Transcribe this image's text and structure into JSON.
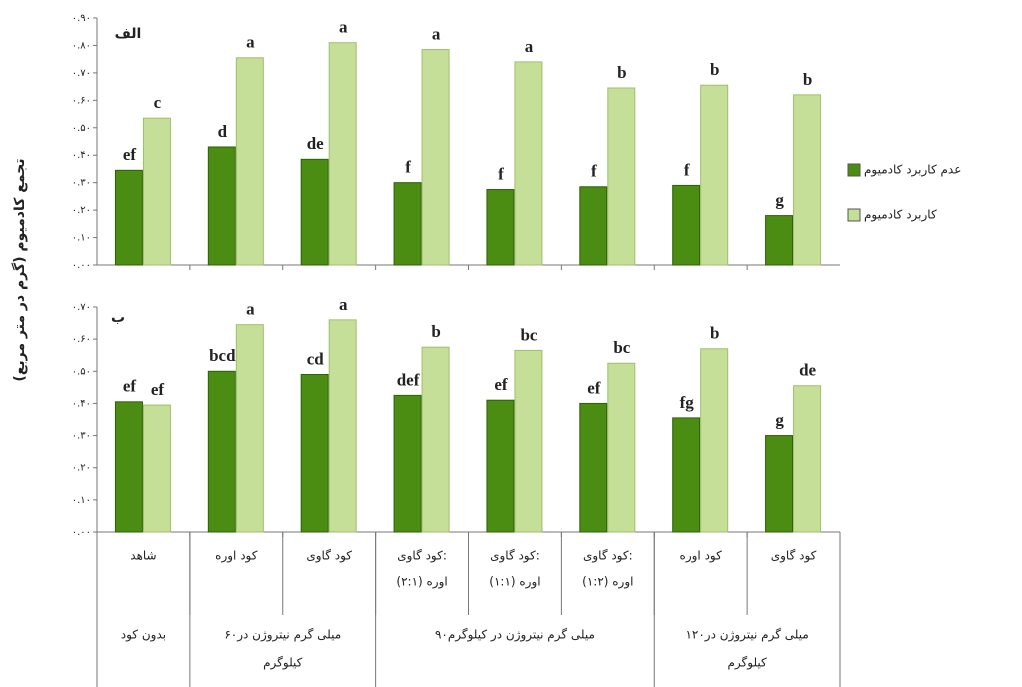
{
  "chart_data": [
    {
      "type": "bar",
      "title": "الف",
      "ylim": [
        0,
        0.9
      ],
      "yticks": [
        {
          "value": 0,
          "label": "۰.۰۰"
        },
        {
          "value": 0.1,
          "label": "۰.۱۰"
        },
        {
          "value": 0.2,
          "label": "۰.۲۰"
        },
        {
          "value": 0.3,
          "label": "۰.۳۰"
        },
        {
          "value": 0.4,
          "label": "۰.۴۰"
        },
        {
          "value": 0.5,
          "label": "۰.۵۰"
        },
        {
          "value": 0.6,
          "label": "۰.۶۰"
        },
        {
          "value": 0.7,
          "label": "۰.۷۰"
        },
        {
          "value": 0.8,
          "label": "۰.۸۰"
        },
        {
          "value": 0.9,
          "label": "۰.۹۰"
        }
      ],
      "series": [
        {
          "name": "عدم کاربرد کادمیوم",
          "color": "#4b8c12",
          "values": [
            0.345,
            0.43,
            0.385,
            0.3,
            0.275,
            0.285,
            0.29,
            0.18
          ],
          "letters": [
            "ef",
            "d",
            "de",
            "f",
            "f",
            "f",
            "f",
            "g"
          ]
        },
        {
          "name": "کاربرد کادمیوم",
          "color": "#c5df98",
          "values": [
            0.535,
            0.755,
            0.81,
            0.785,
            0.74,
            0.645,
            0.655,
            0.62
          ],
          "letters": [
            "c",
            "a",
            "a",
            "a",
            "a",
            "b",
            "b",
            "b"
          ]
        }
      ]
    },
    {
      "type": "bar",
      "title": "ب",
      "ylim": [
        0,
        0.7
      ],
      "yticks": [
        {
          "value": 0,
          "label": "۰.۰۰"
        },
        {
          "value": 0.1,
          "label": "۰.۱۰"
        },
        {
          "value": 0.2,
          "label": "۰.۲۰"
        },
        {
          "value": 0.3,
          "label": "۰.۳۰"
        },
        {
          "value": 0.4,
          "label": "۰.۴۰"
        },
        {
          "value": 0.5,
          "label": "۰.۵۰"
        },
        {
          "value": 0.6,
          "label": "۰.۶۰"
        },
        {
          "value": 0.7,
          "label": "۰.۷۰"
        }
      ],
      "categories": [
        [
          "شاهد"
        ],
        [
          "کود اوره"
        ],
        [
          "کود گاوی"
        ],
        [
          "کود گاوی:",
          "اوره (۲:۱)"
        ],
        [
          "کود گاوی:",
          "اوره (۱:۱)"
        ],
        [
          "کود گاوی:",
          "اوره (۱:۲)"
        ],
        [
          "کود اوره"
        ],
        [
          "کود گاوی"
        ]
      ],
      "category_groups": [
        {
          "label": [
            "بدون کود"
          ],
          "span": 1
        },
        {
          "label": [
            "۶۰میلی گرم نیتروژن در",
            "کیلوگرم"
          ],
          "span": 2
        },
        {
          "label": [
            "۹۰میلی گرم نیتروژن در کیلوگرم"
          ],
          "span": 3
        },
        {
          "label": [
            "۱۲۰میلی گرم نیتروژن در",
            "کیلوگرم"
          ],
          "span": 2
        }
      ],
      "series": [
        {
          "color": "#4b8c12",
          "values": [
            0.405,
            0.5,
            0.49,
            0.425,
            0.41,
            0.4,
            0.355,
            0.3
          ],
          "letters": [
            "ef",
            "bcd",
            "cd",
            "def",
            "ef",
            "ef",
            "fg",
            "g"
          ]
        },
        {
          "color": "#c5df98",
          "values": [
            0.395,
            0.645,
            0.66,
            0.575,
            0.565,
            0.525,
            0.57,
            0.455
          ],
          "letters": [
            "ef",
            "a",
            "a",
            "b",
            "bc",
            "bc",
            "b",
            "de"
          ]
        }
      ]
    }
  ],
  "y_label": "تجمع کادمیوم (گرم در متر مربع)"
}
